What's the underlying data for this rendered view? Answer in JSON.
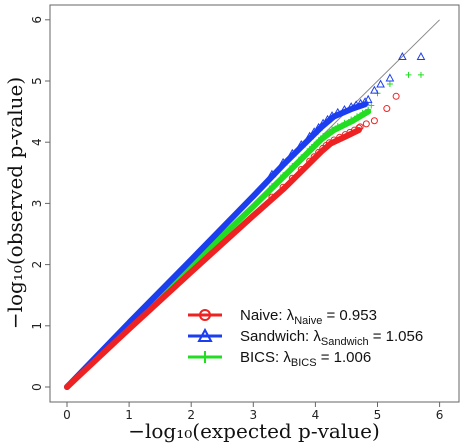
{
  "chart_data": {
    "type": "scatter",
    "title": "",
    "xlabel": "−log₁₀(expected p-value)",
    "ylabel": "−log₁₀(observed p-value)",
    "xlim": [
      0,
      6
    ],
    "ylim": [
      0,
      6
    ],
    "x_ticks": [
      "0",
      "1",
      "2",
      "3",
      "4",
      "5",
      "6"
    ],
    "y_ticks": [
      "0",
      "1",
      "2",
      "3",
      "4",
      "5",
      "6"
    ],
    "reference_line": "y = x",
    "grid": false,
    "legend_position": "bottom-right",
    "series": [
      {
        "name": "Naive",
        "legend_prefix": "Naive: λ",
        "legend_sub": "Naive",
        "legend_suffix": " = 0.953",
        "color": "#ee2222",
        "marker": "circle",
        "curve": [
          [
            0,
            0
          ],
          [
            1,
            0.95
          ],
          [
            2,
            1.88
          ],
          [
            3,
            2.8
          ],
          [
            3.5,
            3.25
          ],
          [
            3.9,
            3.65
          ],
          [
            4.1,
            3.85
          ],
          [
            4.25,
            3.98
          ],
          [
            4.5,
            4.1
          ],
          [
            4.7,
            4.2
          ]
        ],
        "tail": [
          [
            4.72,
            4.25
          ],
          [
            4.82,
            4.3
          ],
          [
            4.95,
            4.35
          ],
          [
            5.15,
            4.55
          ],
          [
            5.3,
            4.75
          ]
        ]
      },
      {
        "name": "Sandwich",
        "legend_prefix": "Sandwich: λ",
        "legend_sub": "Sandwich",
        "legend_suffix": " = 1.056",
        "color": "#1a3ef0",
        "marker": "triangle",
        "curve": [
          [
            0,
            0
          ],
          [
            1,
            1.05
          ],
          [
            2,
            2.08
          ],
          [
            3,
            3.12
          ],
          [
            3.5,
            3.65
          ],
          [
            3.9,
            4.05
          ],
          [
            4.1,
            4.25
          ],
          [
            4.3,
            4.42
          ],
          [
            4.6,
            4.55
          ],
          [
            4.8,
            4.62
          ]
        ],
        "tail": [
          [
            4.85,
            4.7
          ],
          [
            4.95,
            4.85
          ],
          [
            5.05,
            4.95
          ],
          [
            5.2,
            5.05
          ],
          [
            5.4,
            5.4
          ],
          [
            5.7,
            5.4
          ]
        ]
      },
      {
        "name": "BICS",
        "legend_prefix": "BICS: λ",
        "legend_sub": "BICS",
        "legend_suffix": " = 1.006",
        "color": "#22dd22",
        "marker": "plus",
        "curve": [
          [
            0,
            0
          ],
          [
            1,
            1.0
          ],
          [
            2,
            1.98
          ],
          [
            3,
            2.95
          ],
          [
            3.5,
            3.45
          ],
          [
            3.9,
            3.85
          ],
          [
            4.1,
            4.05
          ],
          [
            4.3,
            4.2
          ],
          [
            4.6,
            4.35
          ],
          [
            4.85,
            4.5
          ]
        ],
        "tail": [
          [
            4.9,
            4.6
          ],
          [
            5.0,
            4.8
          ],
          [
            5.2,
            4.95
          ],
          [
            5.5,
            5.1
          ],
          [
            5.7,
            5.1
          ]
        ]
      }
    ]
  }
}
